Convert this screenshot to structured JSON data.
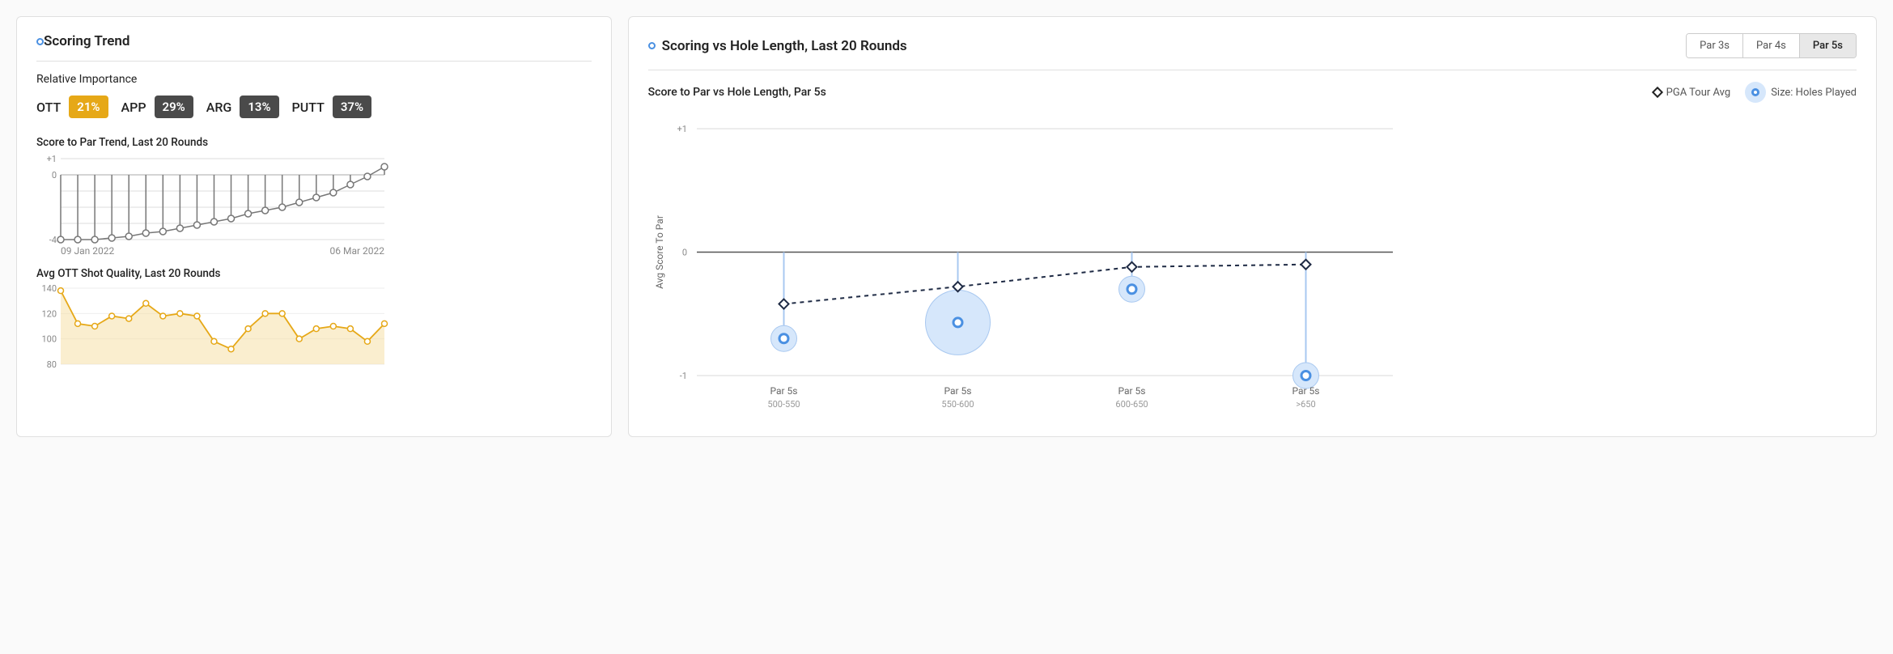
{
  "left_card": {
    "title": "Scoring Trend",
    "importance_label": "Relative Importance",
    "importance": [
      {
        "label": "OTT",
        "value": "21%",
        "color": "#e6a817"
      },
      {
        "label": "APP",
        "value": "29%",
        "color": "#4a4a4a"
      },
      {
        "label": "ARG",
        "value": "13%",
        "color": "#4a4a4a"
      },
      {
        "label": "PUTT",
        "value": "37%",
        "color": "#4a4a4a"
      }
    ],
    "trend_chart": {
      "title": "Score to Par Trend, Last 20 Rounds",
      "type": "lollipop-line",
      "values": [
        -4,
        -4,
        -4,
        -3.9,
        -3.8,
        -3.6,
        -3.5,
        -3.3,
        -3.1,
        -2.9,
        -2.7,
        -2.4,
        -2.2,
        -2.0,
        -1.7,
        -1.4,
        -1.1,
        -0.6,
        -0.1,
        0.5
      ],
      "ylim": [
        -4,
        1
      ],
      "ytick_step": 1,
      "show_ticks": [
        "+1",
        "0",
        "-4"
      ],
      "axis_color": "#bbbbbb",
      "grid_color": "#dddddd",
      "line_color": "#777777",
      "marker_stroke": "#777777",
      "marker_fill": "#ffffff",
      "marker_r": 4,
      "date_start": "09 Jan 2022",
      "date_end": "06 Mar 2022"
    },
    "ott_chart": {
      "title": "Avg OTT Shot Quality, Last 20 Rounds",
      "type": "area-line",
      "values": [
        138,
        112,
        110,
        118,
        116,
        128,
        118,
        120,
        118,
        98,
        92,
        108,
        120,
        120,
        100,
        108,
        110,
        108,
        98,
        112
      ],
      "ylim": [
        80,
        140
      ],
      "ytick_step": 20,
      "line_color": "#e6a817",
      "area_color": "#f6e0a8",
      "area_opacity": 0.55,
      "marker_stroke": "#e6a817",
      "marker_fill": "#ffffff",
      "marker_r": 3.5,
      "axis_color": "#bbbbbb",
      "grid_color": "#eeeeee"
    }
  },
  "right_card": {
    "title": "Scoring vs Hole Length, Last 20 Rounds",
    "tabs": [
      {
        "label": "Par 3s",
        "active": false
      },
      {
        "label": "Par 4s",
        "active": false
      },
      {
        "label": "Par 5s",
        "active": true
      }
    ],
    "subtitle": "Score to Par vs Hole Length, Par 5s",
    "legend_pga": "PGA Tour Avg",
    "legend_size": "Size: Holes Played",
    "chart": {
      "type": "bubble-lollipop",
      "ylabel": "Avg Score To Par",
      "ylim": [
        -1,
        1
      ],
      "ytick_step": 1,
      "categories": [
        {
          "line1": "Par 5s",
          "line2": "500-550"
        },
        {
          "line1": "Par 5s",
          "line2": "550-600"
        },
        {
          "line1": "Par 5s",
          "line2": "600-650"
        },
        {
          "line1": "Par 5s",
          "line2": ">650"
        }
      ],
      "pga_values": [
        -0.42,
        -0.28,
        -0.12,
        -0.1
      ],
      "player_values": [
        -0.7,
        -0.57,
        -0.3,
        -1.0
      ],
      "bubble_radius": [
        16,
        40,
        16,
        16
      ],
      "pga_stroke": "#1e2a44",
      "pga_fill": "#ffffff",
      "pga_dash": "5,5",
      "bubble_fill": "#d6e7fb",
      "bubble_stroke": "#a8c8f0",
      "lollipop_stroke": "#a8c8f0",
      "center_stroke": "#4a90e2",
      "center_fill": "#ffffff",
      "axis_color": "#888888",
      "grid_color": "#d8d8d8",
      "zero_color": "#555555"
    }
  }
}
